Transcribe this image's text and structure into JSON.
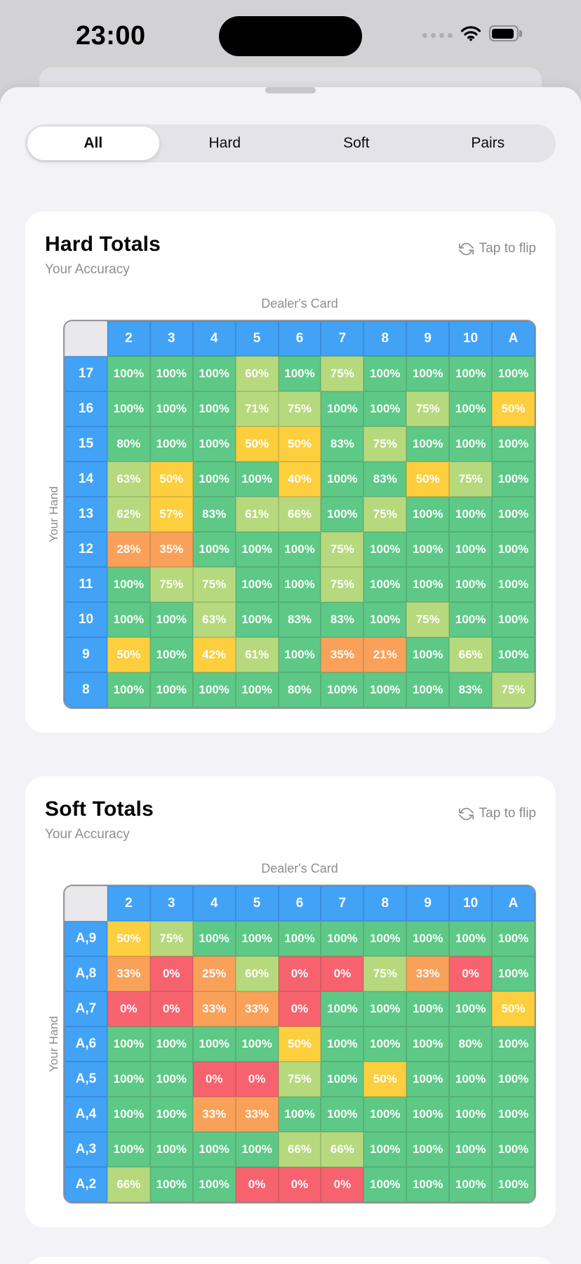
{
  "status_bar": {
    "time": "23:00",
    "battery_fill": "82%"
  },
  "sheet": {
    "tabs": {
      "items": [
        "All",
        "Hard",
        "Soft",
        "Pairs"
      ],
      "selected_index": 0
    }
  },
  "colors": {
    "header_blue": "#42a2f6",
    "green": "#5ec887",
    "yellow_green": "#b6d97d",
    "yellow": "#fdce3e",
    "orange": "#f9a159",
    "red": "#f6636f"
  },
  "cards": [
    {
      "title": "Hard Totals",
      "subtitle": "Your Accuracy",
      "flip_label": "Tap to flip",
      "axis_top": "Dealer's Card",
      "axis_left": "Your Hand",
      "columns": [
        "2",
        "3",
        "4",
        "5",
        "6",
        "7",
        "8",
        "9",
        "10",
        "A"
      ],
      "rows": [
        {
          "label": "17",
          "values": [
            100,
            100,
            100,
            60,
            100,
            75,
            100,
            100,
            100,
            100
          ]
        },
        {
          "label": "16",
          "values": [
            100,
            100,
            100,
            71,
            75,
            100,
            100,
            75,
            100,
            50
          ]
        },
        {
          "label": "15",
          "values": [
            80,
            100,
            100,
            50,
            50,
            83,
            75,
            100,
            100,
            100
          ]
        },
        {
          "label": "14",
          "values": [
            63,
            50,
            100,
            100,
            40,
            100,
            83,
            50,
            75,
            100
          ]
        },
        {
          "label": "13",
          "values": [
            62,
            57,
            83,
            61,
            66,
            100,
            75,
            100,
            100,
            100
          ]
        },
        {
          "label": "12",
          "values": [
            28,
            35,
            100,
            100,
            100,
            75,
            100,
            100,
            100,
            100
          ]
        },
        {
          "label": "11",
          "values": [
            100,
            75,
            75,
            100,
            100,
            75,
            100,
            100,
            100,
            100
          ]
        },
        {
          "label": "10",
          "values": [
            100,
            100,
            63,
            100,
            83,
            83,
            100,
            75,
            100,
            100
          ]
        },
        {
          "label": "9",
          "values": [
            50,
            100,
            42,
            61,
            100,
            35,
            21,
            100,
            66,
            100
          ]
        },
        {
          "label": "8",
          "values": [
            100,
            100,
            100,
            100,
            80,
            100,
            100,
            100,
            83,
            75
          ]
        }
      ]
    },
    {
      "title": "Soft Totals",
      "subtitle": "Your Accuracy",
      "flip_label": "Tap to flip",
      "axis_top": "Dealer's Card",
      "axis_left": "Your Hand",
      "columns": [
        "2",
        "3",
        "4",
        "5",
        "6",
        "7",
        "8",
        "9",
        "10",
        "A"
      ],
      "rows": [
        {
          "label": "A,9",
          "values": [
            50,
            75,
            100,
            100,
            100,
            100,
            100,
            100,
            100,
            100
          ]
        },
        {
          "label": "A,8",
          "values": [
            33,
            0,
            25,
            60,
            0,
            0,
            75,
            33,
            0,
            100
          ]
        },
        {
          "label": "A,7",
          "values": [
            0,
            0,
            33,
            33,
            0,
            100,
            100,
            100,
            100,
            50
          ]
        },
        {
          "label": "A,6",
          "values": [
            100,
            100,
            100,
            100,
            50,
            100,
            100,
            100,
            80,
            100
          ]
        },
        {
          "label": "A,5",
          "values": [
            100,
            100,
            0,
            0,
            75,
            100,
            50,
            100,
            100,
            100
          ]
        },
        {
          "label": "A,4",
          "values": [
            100,
            100,
            33,
            33,
            100,
            100,
            100,
            100,
            100,
            100
          ]
        },
        {
          "label": "A,3",
          "values": [
            100,
            100,
            100,
            100,
            66,
            66,
            100,
            100,
            100,
            100
          ]
        },
        {
          "label": "A,2",
          "values": [
            66,
            100,
            100,
            0,
            0,
            0,
            100,
            100,
            100,
            100
          ]
        }
      ]
    }
  ]
}
